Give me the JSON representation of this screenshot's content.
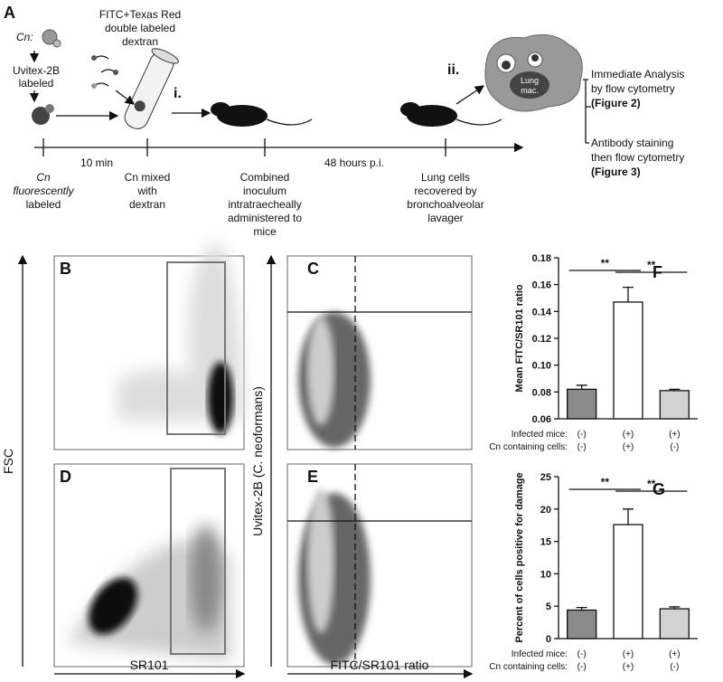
{
  "panel_labels": [
    "A",
    "B",
    "C",
    "D",
    "E"
  ],
  "schematic": {
    "cn_label": "Cn:",
    "uvitex": [
      "Uvitex-2B",
      "labeled"
    ],
    "dextran": [
      "FITC+Texas Red",
      "double labeled",
      "dextran"
    ],
    "step_i": "i.",
    "step_ii": "ii.",
    "lung_mac": [
      "Lung",
      "mac."
    ],
    "outcome_1": [
      "Immediate Analysis",
      "by flow cytometry",
      "(Figure 2)"
    ],
    "outcome_2": [
      "Antibody staining",
      "then flow cytometry",
      "(Figure 3)"
    ],
    "interval_1": "10 min",
    "interval_2": "48 hours p.i.",
    "timeline": [
      [
        "Cn",
        "fluorescently",
        "labeled"
      ],
      [
        "Cn mixed",
        "with",
        "dextran"
      ],
      [
        "Combined",
        "inoculum",
        "intratraecheally",
        "administered to",
        "mice"
      ],
      [
        "Lung cells",
        "recovered by",
        "bronchoalveolar",
        "lavager"
      ]
    ]
  },
  "flow": {
    "x_label_left": "SR101",
    "y_label_left": "FSC",
    "x_label_right": "FITC/SR101 ratio",
    "y_label_right": "Uvitex-2B (C. neoformans)"
  },
  "chart_data": [
    {
      "type": "bar",
      "panel": "F",
      "ylabel": "Mean FITC/SR101 ratio",
      "category_rows": [
        {
          "label": "Infected mice:",
          "values": [
            "(-)",
            "(+)",
            "(+)"
          ]
        },
        {
          "label": "Cn containing cells:",
          "values": [
            "(-)",
            "(+)",
            "(-)"
          ]
        }
      ],
      "values": [
        0.082,
        0.147,
        0.081
      ],
      "errors": [
        0.003,
        0.011,
        0.001
      ],
      "colors": [
        "#8a8a8a",
        "#ffffff",
        "#d2d2d2"
      ],
      "ylim": [
        0.06,
        0.18
      ],
      "yticks": [
        0.06,
        0.08,
        {
          "value": 0.1,
          "label": "0.10"
        },
        0.12,
        0.14,
        0.16,
        0.18
      ],
      "annotations": [
        "**",
        "**"
      ]
    },
    {
      "type": "bar",
      "panel": "G",
      "ylabel": "Percent of cells positive for damage",
      "category_rows": [
        {
          "label": "Infected mice:",
          "values": [
            "(-)",
            "(+)",
            "(+)"
          ]
        },
        {
          "label": "Cn containing cells:",
          "values": [
            "(-)",
            "(+)",
            "(-)"
          ]
        }
      ],
      "values": [
        4.4,
        17.6,
        4.6
      ],
      "errors": [
        0.4,
        2.4,
        0.3
      ],
      "colors": [
        "#8a8a8a",
        "#ffffff",
        "#d2d2d2"
      ],
      "ylim": [
        0,
        25
      ],
      "yticks": [
        0,
        5,
        10,
        15,
        20,
        25
      ],
      "annotations": [
        "**",
        "**"
      ]
    }
  ]
}
